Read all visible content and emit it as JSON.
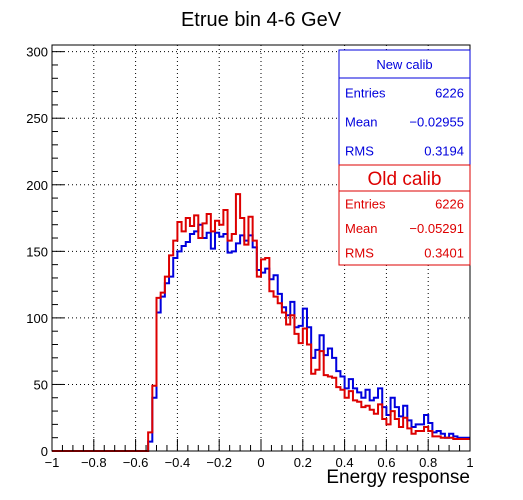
{
  "chart_data": {
    "type": "histogram-step",
    "title": "Etrue bin 4-6 GeV",
    "xlabel": "Energy response",
    "ylabel": "",
    "xlim": [
      -1,
      1
    ],
    "ylim": [
      0,
      305
    ],
    "grid": true,
    "x_ticks": [
      "−1",
      "−0.8",
      "−0.6",
      "−0.4",
      "−0.2",
      "0",
      "0.2",
      "0.4",
      "0.6",
      "0.8",
      "1"
    ],
    "y_ticks": [
      "0",
      "50",
      "100",
      "150",
      "200",
      "250",
      "300"
    ],
    "bin_start": -1.0,
    "bin_width": 0.02,
    "series": [
      {
        "name": "New calib",
        "color": "#0000dd",
        "values": [
          0,
          0,
          0,
          0,
          0,
          0,
          0,
          0,
          0,
          0,
          0,
          0,
          0,
          0,
          0,
          0,
          0,
          0,
          0,
          0,
          0,
          0,
          0,
          7,
          40,
          104,
          116,
          126,
          131,
          145,
          150,
          154,
          157,
          163,
          165,
          170,
          160,
          164,
          152,
          164,
          161,
          163,
          149,
          150,
          156,
          162,
          158,
          162,
          153,
          136,
          134,
          137,
          129,
          132,
          118,
          108,
          102,
          112,
          93,
          94,
          107,
          93,
          70,
          76,
          87,
          72,
          77,
          70,
          60,
          56,
          47,
          54,
          47,
          44,
          40,
          46,
          38,
          40,
          47,
          33,
          27,
          40,
          33,
          26,
          34,
          23,
          18,
          20,
          20,
          27,
          21,
          14,
          15,
          13,
          10,
          13,
          11,
          10,
          10,
          10
        ]
      },
      {
        "name": "Old calib",
        "color": "#dd0000",
        "values": [
          0,
          0,
          0,
          0,
          0,
          0,
          0,
          0,
          0,
          0,
          0,
          0,
          0,
          0,
          0,
          0,
          0,
          0,
          0,
          0,
          0,
          0,
          0,
          14,
          49,
          115,
          119,
          131,
          147,
          158,
          172,
          165,
          175,
          169,
          177,
          160,
          171,
          178,
          165,
          173,
          170,
          181,
          158,
          163,
          193,
          175,
          155,
          176,
          158,
          131,
          144,
          145,
          120,
          116,
          111,
          104,
          95,
          102,
          88,
          81,
          92,
          80,
          58,
          61,
          75,
          57,
          56,
          55,
          48,
          46,
          40,
          45,
          38,
          37,
          33,
          34,
          31,
          28,
          35,
          24,
          20,
          30,
          24,
          18,
          25,
          17,
          13,
          15,
          15,
          18,
          15,
          11,
          11,
          10,
          10,
          10,
          9,
          9,
          9,
          9
        ]
      }
    ],
    "stats_boxes": [
      {
        "title": "New calib",
        "color": "#0000dd",
        "rows": [
          {
            "label": "Entries",
            "value": "6226"
          },
          {
            "label": "Mean",
            "value": "−0.02955"
          },
          {
            "label": "RMS",
            "value": "0.3194"
          }
        ]
      },
      {
        "title": "Old calib",
        "color": "#dd0000",
        "rows": [
          {
            "label": "Entries",
            "value": "6226"
          },
          {
            "label": "Mean",
            "value": "−0.05291"
          },
          {
            "label": "RMS",
            "value": "0.3401"
          }
        ]
      }
    ]
  }
}
